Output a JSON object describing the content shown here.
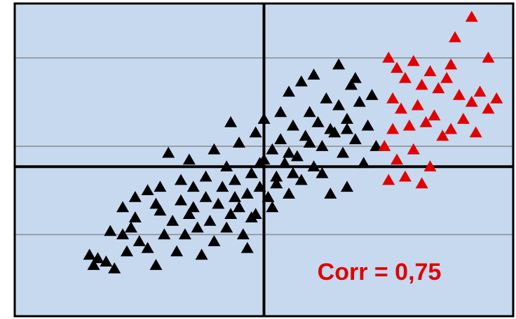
{
  "chart_data": {
    "type": "scatter",
    "title": "",
    "xlabel": "",
    "ylabel": "",
    "xlim": [
      -3,
      3
    ],
    "ylim": [
      -2.2,
      2.4
    ],
    "grid": "horizontal",
    "legend": "none",
    "colors": {
      "plot_background": "#c6d9ef",
      "gridline": "#8c8c8c",
      "axis_line": "#000000",
      "frame": "#000000",
      "annotation": "#e00000"
    },
    "gridlines_y": [
      1.6,
      0.3,
      -1.0
    ],
    "zero_lines": {
      "x": 0,
      "y": 0
    },
    "annotation": {
      "text": "Corr = 0,75",
      "color": "#e00000"
    },
    "series": [
      {
        "marker": "triangle",
        "color": "#000000",
        "points": [
          [
            -2.1,
            -1.3
          ],
          [
            -2.0,
            -1.35
          ],
          [
            -1.9,
            -1.4
          ],
          [
            -1.8,
            -1.5
          ],
          [
            -1.85,
            -0.95
          ],
          [
            -1.7,
            -1.0
          ],
          [
            -1.6,
            -0.9
          ],
          [
            -1.7,
            -0.6
          ],
          [
            -1.55,
            -0.75
          ],
          [
            -1.5,
            -1.1
          ],
          [
            -1.4,
            -1.2
          ],
          [
            -1.3,
            -1.45
          ],
          [
            -1.25,
            -0.65
          ],
          [
            -1.2,
            -1.0
          ],
          [
            -1.1,
            -0.8
          ],
          [
            -1.05,
            -1.25
          ],
          [
            -1.0,
            -0.5
          ],
          [
            -0.95,
            -1.0
          ],
          [
            -0.9,
            -0.7
          ],
          [
            -0.85,
            -0.3
          ],
          [
            -0.8,
            -0.9
          ],
          [
            -0.75,
            -1.3
          ],
          [
            -0.7,
            -0.45
          ],
          [
            -0.65,
            -0.8
          ],
          [
            -0.6,
            -1.1
          ],
          [
            -0.55,
            -0.55
          ],
          [
            -0.5,
            -0.3
          ],
          [
            -0.45,
            -0.9
          ],
          [
            -0.4,
            -0.7
          ],
          [
            -0.35,
            -0.2
          ],
          [
            -0.3,
            -0.6
          ],
          [
            -0.25,
            -1.0
          ],
          [
            -0.2,
            -0.4
          ],
          [
            -0.15,
            -0.1
          ],
          [
            -0.1,
            -0.7
          ],
          [
            -0.05,
            -0.3
          ],
          [
            0.0,
            0.1
          ],
          [
            0.05,
            -0.45
          ],
          [
            0.1,
            0.25
          ],
          [
            0.15,
            -0.15
          ],
          [
            0.2,
            0.4
          ],
          [
            0.25,
            0.05
          ],
          [
            0.3,
            -0.4
          ],
          [
            0.35,
            0.6
          ],
          [
            0.4,
            0.15
          ],
          [
            0.45,
            -0.2
          ],
          [
            0.5,
            0.45
          ],
          [
            0.55,
            0.8
          ],
          [
            0.6,
            0.0
          ],
          [
            0.65,
            0.65
          ],
          [
            0.7,
            0.3
          ],
          [
            0.75,
            1.0
          ],
          [
            0.8,
            -0.4
          ],
          [
            0.85,
            0.5
          ],
          [
            0.9,
            0.9
          ],
          [
            0.95,
            0.2
          ],
          [
            1.0,
            0.7
          ],
          [
            1.05,
            1.2
          ],
          [
            1.1,
            0.4
          ],
          [
            1.15,
            0.95
          ],
          [
            1.2,
            0.05
          ],
          [
            1.25,
            0.6
          ],
          [
            1.3,
            1.05
          ],
          [
            1.35,
            0.3
          ],
          [
            0.9,
            1.5
          ],
          [
            1.1,
            1.3
          ],
          [
            0.3,
            1.1
          ],
          [
            -0.4,
            0.65
          ],
          [
            -0.9,
            0.1
          ],
          [
            -1.15,
            0.2
          ],
          [
            -1.25,
            -0.3
          ],
          [
            -0.1,
            0.5
          ],
          [
            0.2,
            0.8
          ],
          [
            0.45,
            1.25
          ],
          [
            0.6,
            1.35
          ],
          [
            -0.6,
            0.25
          ],
          [
            -0.3,
            0.35
          ],
          [
            0.0,
            0.7
          ],
          [
            -1.4,
            -0.35
          ],
          [
            -0.2,
            -1.2
          ],
          [
            0.1,
            -0.6
          ],
          [
            0.7,
            -0.1
          ],
          [
            1.0,
            -0.3
          ],
          [
            -2.05,
            -1.45
          ],
          [
            -1.65,
            -1.25
          ],
          [
            -0.45,
            0.0
          ],
          [
            -0.7,
            -0.15
          ],
          [
            -0.05,
            0.05
          ],
          [
            0.3,
            0.2
          ],
          [
            0.55,
            0.35
          ],
          [
            0.8,
            0.55
          ],
          [
            1.0,
            0.55
          ],
          [
            0.15,
            -0.25
          ],
          [
            -0.35,
            -0.45
          ],
          [
            -0.85,
            -0.6
          ],
          [
            -1.0,
            -0.2
          ],
          [
            -1.3,
            -0.55
          ],
          [
            -1.55,
            -0.45
          ],
          [
            0.35,
            -0.1
          ],
          [
            -0.15,
            -0.75
          ]
        ]
      },
      {
        "marker": "triangle",
        "color": "#e00000",
        "points": [
          [
            1.5,
            1.6
          ],
          [
            1.6,
            1.45
          ],
          [
            1.7,
            1.3
          ],
          [
            1.8,
            1.55
          ],
          [
            1.9,
            1.2
          ],
          [
            2.0,
            1.4
          ],
          [
            2.1,
            1.15
          ],
          [
            2.2,
            1.3
          ],
          [
            2.35,
            1.05
          ],
          [
            2.5,
            0.95
          ],
          [
            2.6,
            1.1
          ],
          [
            2.7,
            0.85
          ],
          [
            2.8,
            1.0
          ],
          [
            1.55,
            1.0
          ],
          [
            1.65,
            0.85
          ],
          [
            1.75,
            0.6
          ],
          [
            1.85,
            0.9
          ],
          [
            1.95,
            0.65
          ],
          [
            2.05,
            0.75
          ],
          [
            2.15,
            0.45
          ],
          [
            2.25,
            0.55
          ],
          [
            2.4,
            0.7
          ],
          [
            2.55,
            0.5
          ],
          [
            1.45,
            0.3
          ],
          [
            1.6,
            0.1
          ],
          [
            1.8,
            0.25
          ],
          [
            2.0,
            0.0
          ],
          [
            1.5,
            -0.2
          ],
          [
            1.7,
            -0.15
          ],
          [
            1.9,
            -0.25
          ],
          [
            2.3,
            1.9
          ],
          [
            2.5,
            2.2
          ],
          [
            2.7,
            1.6
          ],
          [
            1.55,
            0.55
          ],
          [
            2.25,
            1.5
          ]
        ]
      }
    ]
  }
}
